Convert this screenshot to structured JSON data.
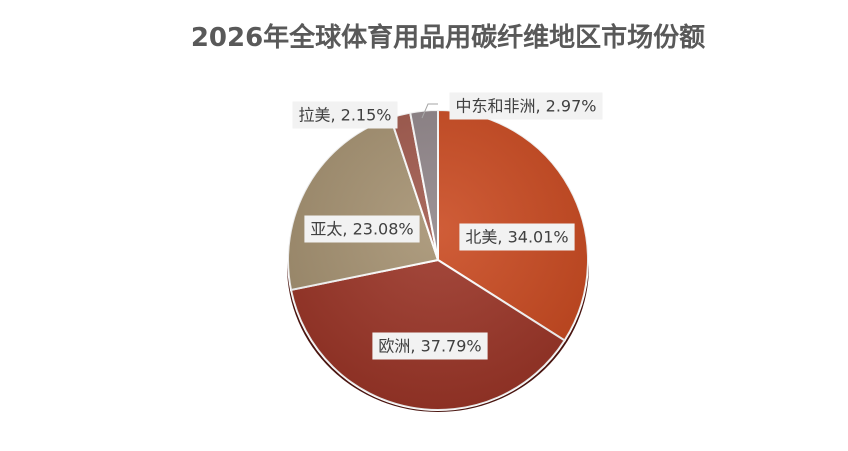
{
  "chart_data": {
    "type": "pie",
    "title": "2026年全球体育用品用碳纤维地区市场份额",
    "categories": [
      "北美",
      "欧洲",
      "亚太",
      "拉美",
      "中东和非洲"
    ],
    "values": [
      34.01,
      37.79,
      23.08,
      2.15,
      2.97
    ],
    "value_labels": [
      "北美, 34.01%",
      "欧洲, 37.79%",
      "亚太, 23.08%",
      "拉美, 2.15%",
      "中东和非洲, 2.97%"
    ],
    "colors": [
      "#c9471d",
      "#9a3224",
      "#a4906f",
      "#9f5649",
      "#8e8387"
    ]
  }
}
